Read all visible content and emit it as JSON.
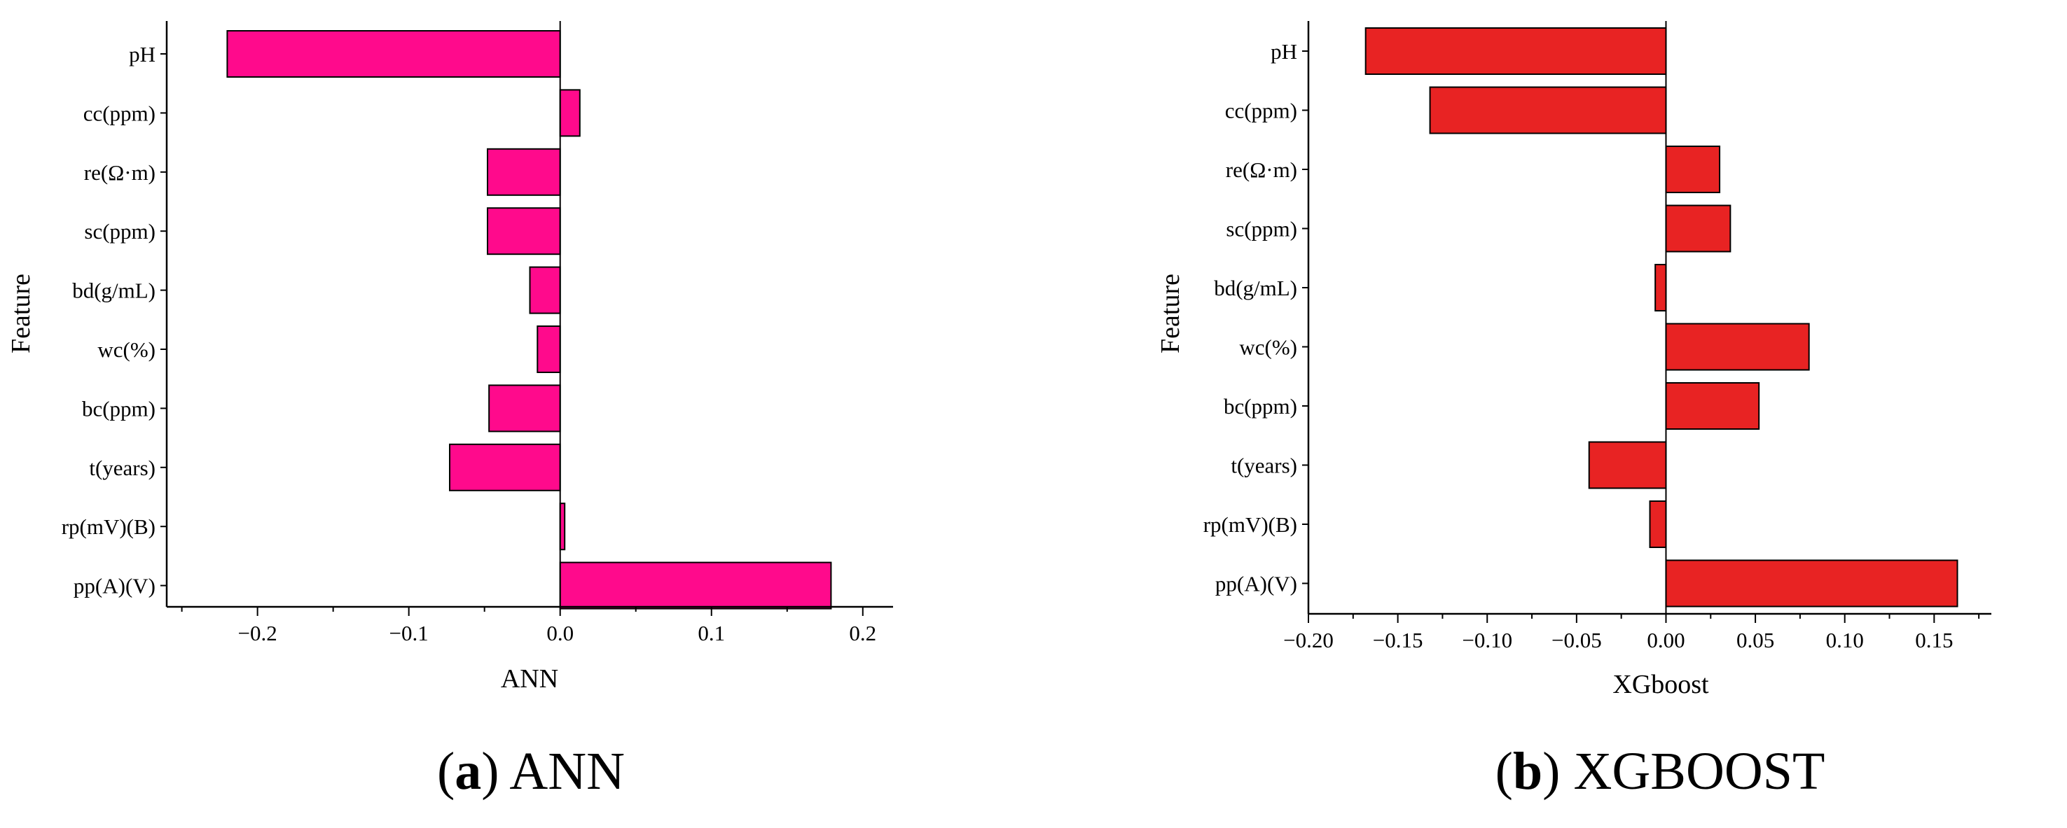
{
  "chart_data": [
    {
      "type": "bar",
      "orientation": "horizontal",
      "categories": [
        "pH",
        "cc(ppm)",
        "re(Ω·m)",
        "sc(ppm)",
        "bd(g/mL)",
        "wc(%)",
        "bc(ppm)",
        "t(years)",
        "rp(mV)(B)",
        "pp(A)(V)"
      ],
      "values": [
        -0.22,
        0.013,
        -0.048,
        -0.048,
        -0.02,
        -0.015,
        -0.047,
        -0.073,
        0.003,
        0.179
      ],
      "xlabel": "ANN",
      "ylabel": "Feature",
      "xlim": [
        -0.26,
        0.22
      ],
      "xticks": [
        -0.2,
        -0.1,
        0.0,
        0.1,
        0.2
      ],
      "xtick_labels": [
        "−0.2",
        "−0.1",
        "0.0",
        "0.1",
        "0.2"
      ],
      "color": "#FF0A8C",
      "grid": false,
      "caption_letter": "(a)",
      "caption_text": "ANN"
    },
    {
      "type": "bar",
      "orientation": "horizontal",
      "categories": [
        "pH",
        "cc(ppm)",
        "re(Ω·m)",
        "sc(ppm)",
        "bd(g/mL)",
        "wc(%)",
        "bc(ppm)",
        "t(years)",
        "rp(mV)(B)",
        "pp(A)(V)"
      ],
      "values": [
        -0.168,
        -0.132,
        0.03,
        0.036,
        -0.006,
        0.08,
        0.052,
        -0.043,
        -0.009,
        0.163
      ],
      "xlabel": "XGboost",
      "ylabel": "Feature",
      "xlim": [
        -0.2,
        0.182
      ],
      "xticks": [
        -0.2,
        -0.15,
        -0.1,
        -0.05,
        0.0,
        0.05,
        0.1,
        0.15
      ],
      "xtick_labels": [
        "−0.20",
        "−0.15",
        "−0.10",
        "−0.05",
        "0.00",
        "0.05",
        "0.10",
        "0.15"
      ],
      "color": "#E82323",
      "grid": false,
      "caption_letter": "(b)",
      "caption_text": "XGBOOST"
    }
  ]
}
